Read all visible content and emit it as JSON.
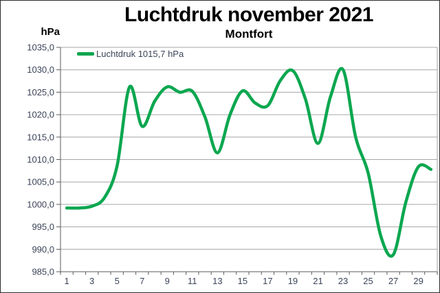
{
  "chart_data": {
    "type": "line",
    "title": "Luchtdruk november 2021",
    "subtitle": "Montfort",
    "y_axis_unit": "hPa",
    "legend_label": "Luchtdruk 1015,7 hPa",
    "legend_position": "top-left",
    "grid": true,
    "xlabel": "",
    "ylabel": "hPa",
    "ylim": [
      985,
      1035
    ],
    "y_tick_step": 5,
    "y_tick_labels": [
      "1035,0",
      "1030,0",
      "1025,0",
      "1020,0",
      "1015,0",
      "1010,0",
      "1005,0",
      "1000,0",
      "995,0",
      "990,0",
      "985,0"
    ],
    "x_tick_labels": [
      "1",
      "3",
      "5",
      "7",
      "9",
      "11",
      "13",
      "15",
      "17",
      "19",
      "21",
      "23",
      "25",
      "27",
      "29"
    ],
    "x": [
      1,
      2,
      3,
      4,
      5,
      6,
      7,
      8,
      9,
      10,
      11,
      12,
      13,
      14,
      15,
      16,
      17,
      18,
      19,
      20,
      21,
      22,
      23,
      24,
      25,
      26,
      27,
      28,
      29,
      30
    ],
    "series": [
      {
        "name": "Luchtdruk 1015,7 hPa",
        "color": "#0ca750",
        "values": [
          999.2,
          999.2,
          999.6,
          1001.5,
          1008.5,
          1026.2,
          1017.4,
          1023.0,
          1026.2,
          1025.0,
          1025.2,
          1019.5,
          1011.5,
          1020.0,
          1025.3,
          1022.6,
          1022.0,
          1027.6,
          1029.8,
          1023.5,
          1013.6,
          1024.0,
          1030.0,
          1015.0,
          1007.0,
          993.0,
          988.8,
          1000.5,
          1008.4,
          1007.8
        ]
      }
    ]
  },
  "colors": {
    "line": "#0ca750",
    "tick_text": "#3a4458",
    "grid": "#a6a6a6",
    "axis": "#595959",
    "title": "#000000",
    "background": "#ffffff"
  }
}
